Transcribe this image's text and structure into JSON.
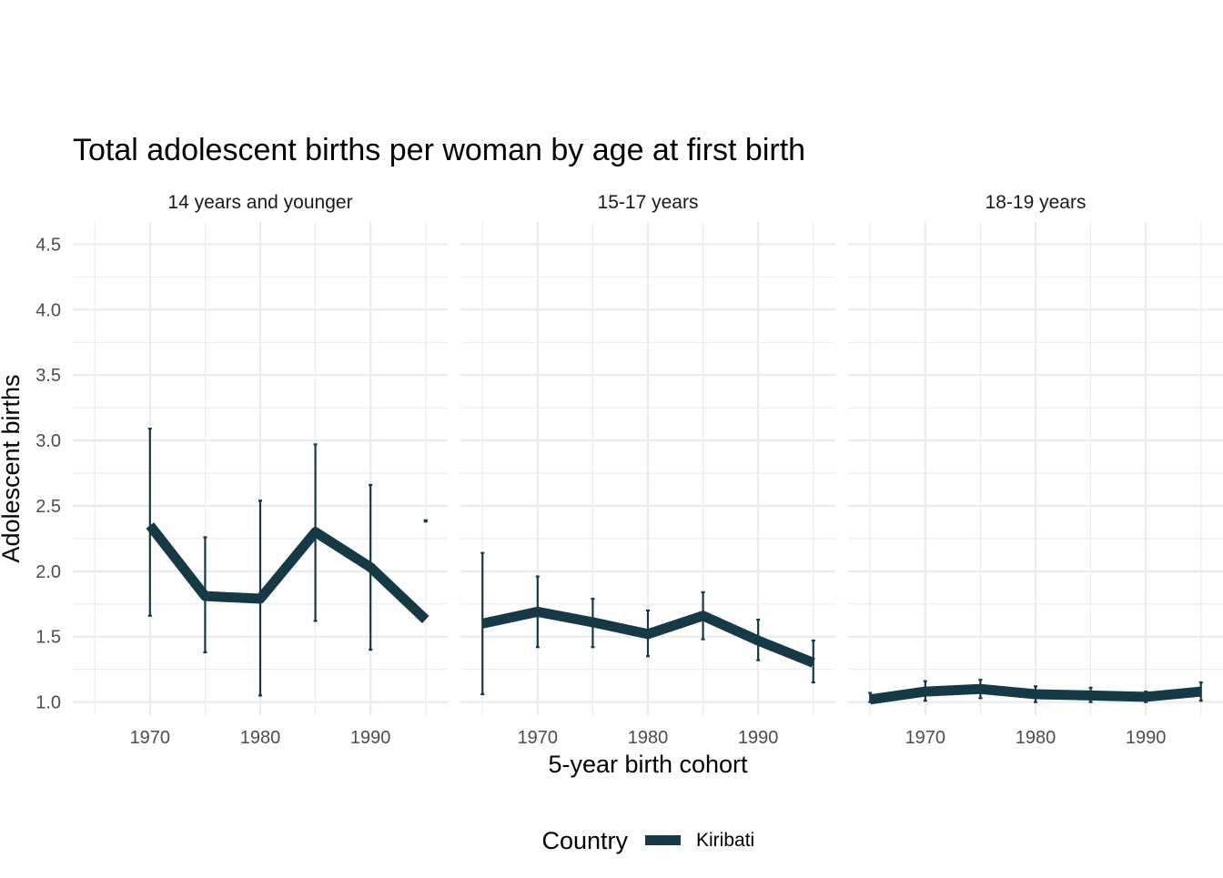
{
  "chart_data": {
    "type": "line",
    "title": "Total adolescent births per woman by age at first birth",
    "xlabel": "5-year birth cohort",
    "ylabel": "Adolescent births",
    "xlim": [
      1963,
      1997
    ],
    "ylim": [
      0.9,
      4.67
    ],
    "x_ticks": [
      "1970",
      "1980",
      "1990"
    ],
    "y_ticks": [
      "1.0",
      "1.5",
      "2.0",
      "2.5",
      "3.0",
      "3.5",
      "4.0",
      "4.5"
    ],
    "grid": true,
    "legend": {
      "title": "Country",
      "position": "bottom",
      "entries": [
        "Kiribati"
      ]
    },
    "colors": {
      "series": "#163a45",
      "grid": "#ebebeb"
    },
    "panels": [
      {
        "label": "14 years and younger",
        "series": [
          {
            "name": "Kiribati",
            "x": [
              1970,
              1975,
              1980,
              1985,
              1990,
              1995
            ],
            "values": [
              2.35,
              1.81,
              1.79,
              2.3,
              2.03,
              1.63
            ],
            "error_low": [
              1.66,
              1.38,
              1.05,
              1.62,
              1.4,
              2.38
            ],
            "error_high": [
              3.09,
              2.26,
              2.54,
              2.97,
              2.66,
              2.39
            ]
          }
        ]
      },
      {
        "label": "15-17 years",
        "series": [
          {
            "name": "Kiribati",
            "x": [
              1965,
              1970,
              1975,
              1980,
              1985,
              1990,
              1995
            ],
            "values": [
              1.6,
              1.69,
              1.61,
              1.52,
              1.66,
              1.47,
              1.3
            ],
            "error_low": [
              1.06,
              1.42,
              1.42,
              1.35,
              1.48,
              1.32,
              1.15
            ],
            "error_high": [
              2.14,
              1.96,
              1.79,
              1.7,
              1.84,
              1.63,
              1.47
            ]
          }
        ]
      },
      {
        "label": "18-19 years",
        "series": [
          {
            "name": "Kiribati",
            "x": [
              1965,
              1970,
              1975,
              1980,
              1985,
              1990,
              1995
            ],
            "values": [
              1.02,
              1.08,
              1.1,
              1.06,
              1.05,
              1.04,
              1.08
            ],
            "error_low": [
              1.0,
              1.01,
              1.03,
              1.0,
              1.0,
              1.0,
              1.01
            ],
            "error_high": [
              1.07,
              1.16,
              1.17,
              1.12,
              1.11,
              1.08,
              1.15
            ]
          }
        ]
      }
    ]
  }
}
